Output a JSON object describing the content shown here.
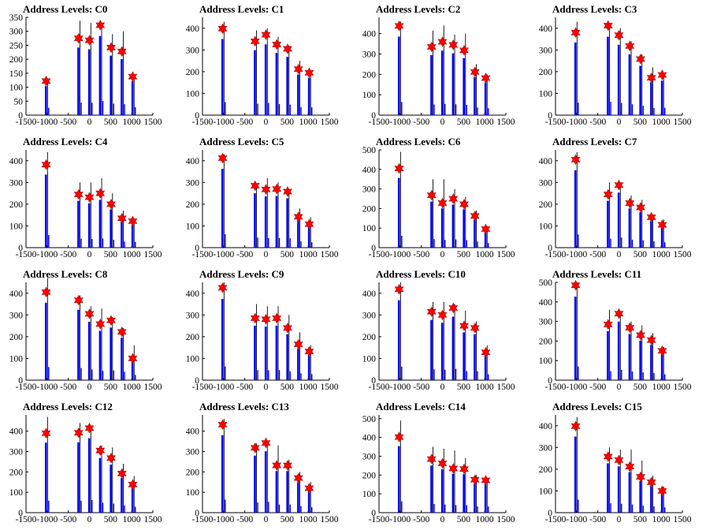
{
  "chart_data": [
    {
      "type": "bar",
      "title": "Address Levels: C0",
      "ylim": [
        0,
        350
      ],
      "yticks": [
        0,
        50,
        100,
        150,
        200,
        250,
        300,
        350
      ],
      "xlim": [
        -1500,
        1500
      ],
      "xticks": [
        -1500,
        -1000,
        -500,
        0,
        500,
        1000,
        1500
      ],
      "x": [
        -1024,
        -256,
        0,
        256,
        512,
        768,
        1024
      ],
      "marker_values": [
        122,
        275,
        268,
        322,
        242,
        228,
        138
      ],
      "bar_peaks": [
        118,
        338,
        330,
        325,
        290,
        300,
        140
      ]
    },
    {
      "type": "bar",
      "title": "Address Levels: C1",
      "ylim": [
        0,
        450
      ],
      "yticks": [
        0,
        100,
        200,
        300,
        400
      ],
      "xlim": [
        -1500,
        1500
      ],
      "xticks": [
        -1500,
        -1000,
        -500,
        0,
        500,
        1000,
        1500
      ],
      "x": [
        -1024,
        -256,
        0,
        256,
        512,
        768,
        1024
      ],
      "marker_values": [
        398,
        340,
        370,
        325,
        305,
        212,
        195
      ],
      "bar_peaks": [
        430,
        390,
        400,
        360,
        320,
        250,
        200
      ]
    },
    {
      "type": "bar",
      "title": "Address Levels: C2",
      "ylim": [
        0,
        480
      ],
      "yticks": [
        0,
        100,
        200,
        300,
        400
      ],
      "xlim": [
        -1500,
        1500
      ],
      "xticks": [
        -1500,
        -1000,
        -500,
        0,
        500,
        1000,
        1500
      ],
      "x": [
        -1024,
        -256,
        0,
        256,
        512,
        768,
        1024
      ],
      "marker_values": [
        438,
        335,
        360,
        345,
        318,
        212,
        182
      ],
      "bar_peaks": [
        460,
        415,
        440,
        395,
        400,
        250,
        200
      ]
    },
    {
      "type": "bar",
      "title": "Address Levels: C3",
      "ylim": [
        0,
        450
      ],
      "yticks": [
        0,
        100,
        200,
        300,
        400
      ],
      "xlim": [
        -1500,
        1500
      ],
      "xticks": [
        -1500,
        -1000,
        -500,
        0,
        500,
        1000,
        1500
      ],
      "x": [
        -1024,
        -256,
        0,
        256,
        512,
        768,
        1024
      ],
      "marker_values": [
        380,
        412,
        368,
        318,
        258,
        172,
        185
      ],
      "bar_peaks": [
        430,
        410,
        400,
        340,
        280,
        220,
        180
      ]
    },
    {
      "type": "bar",
      "title": "Address Levels: C4",
      "ylim": [
        0,
        450
      ],
      "yticks": [
        0,
        100,
        200,
        300,
        400
      ],
      "xlim": [
        -1500,
        1500
      ],
      "xticks": [
        -1500,
        -1000,
        -500,
        0,
        500,
        1000,
        1500
      ],
      "x": [
        -1024,
        -256,
        0,
        256,
        512,
        768,
        1024
      ],
      "marker_values": [
        382,
        245,
        232,
        250,
        200,
        135,
        122
      ],
      "bar_peaks": [
        440,
        300,
        300,
        320,
        250,
        170,
        130
      ]
    },
    {
      "type": "bar",
      "title": "Address Levels: C5",
      "ylim": [
        0,
        450
      ],
      "yticks": [
        0,
        100,
        200,
        300,
        400
      ],
      "xlim": [
        -1500,
        1500
      ],
      "xticks": [
        -1500,
        -1000,
        -500,
        0,
        500,
        1000,
        1500
      ],
      "x": [
        -1024,
        -256,
        0,
        256,
        512,
        768,
        1024
      ],
      "marker_values": [
        412,
        285,
        268,
        270,
        258,
        142,
        108
      ],
      "bar_peaks": [
        430,
        290,
        320,
        300,
        270,
        180,
        140
      ]
    },
    {
      "type": "bar",
      "title": "Address Levels: C6",
      "ylim": [
        0,
        500
      ],
      "yticks": [
        0,
        100,
        200,
        300,
        400,
        500
      ],
      "xlim": [
        -1500,
        1500
      ],
      "xticks": [
        -1500,
        -1000,
        -500,
        0,
        500,
        1000,
        1500
      ],
      "x": [
        -1024,
        -256,
        0,
        256,
        512,
        768,
        1024
      ],
      "marker_values": [
        405,
        268,
        228,
        250,
        222,
        162,
        95
      ],
      "bar_peaks": [
        490,
        350,
        350,
        300,
        260,
        190,
        110
      ]
    },
    {
      "type": "bar",
      "title": "Address Levels: C7",
      "ylim": [
        0,
        450
      ],
      "yticks": [
        0,
        100,
        200,
        300,
        400
      ],
      "xlim": [
        -1500,
        1500
      ],
      "xticks": [
        -1500,
        -1000,
        -500,
        0,
        500,
        1000,
        1500
      ],
      "x": [
        -1024,
        -256,
        0,
        256,
        512,
        768,
        1024
      ],
      "marker_values": [
        405,
        245,
        288,
        205,
        185,
        140,
        105
      ],
      "bar_peaks": [
        440,
        300,
        300,
        240,
        220,
        150,
        130
      ]
    },
    {
      "type": "bar",
      "title": "Address Levels: C8",
      "ylim": [
        0,
        450
      ],
      "yticks": [
        0,
        100,
        200,
        300,
        400
      ],
      "xlim": [
        -1500,
        1500
      ],
      "xticks": [
        -1500,
        -1000,
        -500,
        0,
        500,
        1000,
        1500
      ],
      "x": [
        -1024,
        -256,
        0,
        256,
        512,
        768,
        1024
      ],
      "marker_values": [
        405,
        368,
        305,
        258,
        275,
        222,
        100
      ],
      "bar_peaks": [
        470,
        390,
        340,
        330,
        290,
        240,
        160
      ]
    },
    {
      "type": "bar",
      "title": "Address Levels: C9",
      "ylim": [
        0,
        450
      ],
      "yticks": [
        0,
        100,
        200,
        300,
        400
      ],
      "xlim": [
        -1500,
        1500
      ],
      "xticks": [
        -1500,
        -1000,
        -500,
        0,
        500,
        1000,
        1500
      ],
      "x": [
        -1024,
        -256,
        0,
        256,
        512,
        768,
        1024
      ],
      "marker_values": [
        425,
        285,
        280,
        285,
        240,
        165,
        132
      ],
      "bar_peaks": [
        450,
        350,
        340,
        340,
        300,
        220,
        160
      ]
    },
    {
      "type": "bar",
      "title": "Address Levels: C10",
      "ylim": [
        0,
        450
      ],
      "yticks": [
        0,
        100,
        200,
        300,
        400
      ],
      "xlim": [
        -1500,
        1500
      ],
      "xticks": [
        -1500,
        -1000,
        -500,
        0,
        500,
        1000,
        1500
      ],
      "x": [
        -1024,
        -256,
        0,
        256,
        512,
        768,
        1024
      ],
      "marker_values": [
        418,
        315,
        300,
        332,
        250,
        240,
        128
      ],
      "bar_peaks": [
        450,
        360,
        360,
        350,
        320,
        270,
        160
      ]
    },
    {
      "type": "bar",
      "title": "Address Levels: C11",
      "ylim": [
        0,
        500
      ],
      "yticks": [
        0,
        100,
        200,
        300,
        400,
        500
      ],
      "xlim": [
        -1500,
        1500
      ],
      "xticks": [
        -1500,
        -1000,
        -500,
        0,
        500,
        1000,
        1500
      ],
      "x": [
        -1024,
        -256,
        0,
        256,
        512,
        768,
        1024
      ],
      "marker_values": [
        485,
        285,
        340,
        268,
        230,
        205,
        150
      ],
      "bar_peaks": [
        500,
        360,
        340,
        300,
        280,
        240,
        170
      ]
    },
    {
      "type": "bar",
      "title": "Address Levels: C12",
      "ylim": [
        0,
        480
      ],
      "yticks": [
        0,
        100,
        200,
        300,
        400
      ],
      "xlim": [
        -1500,
        1500
      ],
      "xticks": [
        -1500,
        -1000,
        -500,
        0,
        500,
        1000,
        1500
      ],
      "x": [
        -1024,
        -256,
        0,
        256,
        512,
        768,
        1024
      ],
      "marker_values": [
        390,
        392,
        415,
        305,
        268,
        192,
        138
      ],
      "bar_peaks": [
        470,
        440,
        420,
        330,
        320,
        240,
        180
      ]
    },
    {
      "type": "bar",
      "title": "Address Levels: C13",
      "ylim": [
        0,
        480
      ],
      "yticks": [
        0,
        100,
        200,
        300,
        400
      ],
      "xlim": [
        -1500,
        1500
      ],
      "xticks": [
        -1500,
        -1000,
        -500,
        0,
        500,
        1000,
        1500
      ],
      "x": [
        -1024,
        -256,
        0,
        256,
        512,
        768,
        1024
      ],
      "marker_values": [
        432,
        318,
        342,
        232,
        232,
        170,
        120
      ],
      "bar_peaks": [
        460,
        340,
        350,
        330,
        260,
        200,
        150
      ]
    },
    {
      "type": "bar",
      "title": "Address Levels: C14",
      "ylim": [
        0,
        520
      ],
      "yticks": [
        0,
        100,
        200,
        300,
        400,
        500
      ],
      "xlim": [
        -1500,
        1500
      ],
      "xticks": [
        -1500,
        -1000,
        -500,
        0,
        500,
        1000,
        1500
      ],
      "x": [
        -1024,
        -256,
        0,
        256,
        512,
        768,
        1024
      ],
      "marker_values": [
        402,
        285,
        262,
        235,
        232,
        175,
        172
      ],
      "bar_peaks": [
        490,
        350,
        340,
        330,
        290,
        200,
        180
      ]
    },
    {
      "type": "bar",
      "title": "Address Levels: C15",
      "ylim": [
        0,
        450
      ],
      "yticks": [
        0,
        100,
        200,
        300,
        400
      ],
      "xlim": [
        -1500,
        1500
      ],
      "xticks": [
        -1500,
        -1000,
        -500,
        0,
        500,
        1000,
        1500
      ],
      "x": [
        -1024,
        -256,
        0,
        256,
        512,
        768,
        1024
      ],
      "marker_values": [
        398,
        258,
        242,
        212,
        165,
        140,
        100
      ],
      "bar_peaks": [
        440,
        300,
        290,
        290,
        240,
        170,
        120
      ]
    }
  ],
  "colors": {
    "bar": "#0000ff",
    "bar_outline": "#000000",
    "marker": "#ff0000",
    "axis": "#000000",
    "background": "#ffffff"
  }
}
